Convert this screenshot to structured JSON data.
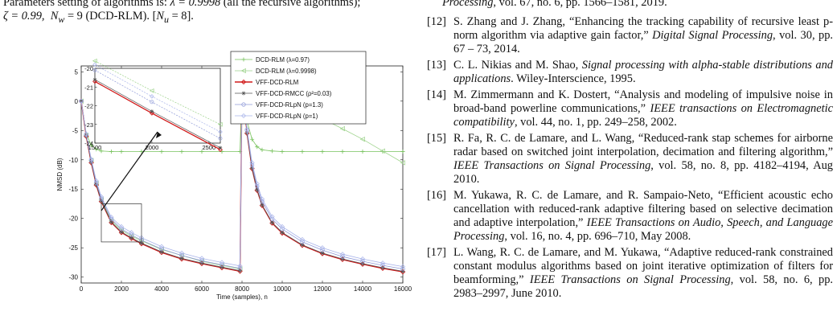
{
  "left_column": {
    "param_line1_prefix": "Parameters setting of algorithms is: ",
    "param_lambda": "λ = 0.9998",
    "param_line1_suffix": " (all the recursive algorithms);",
    "param_line2_zeta": "ζ = 0.99,",
    "param_line2_nw": "N",
    "param_line2_nw_sub": "w",
    "param_line2_nw_val": " = 9",
    "param_line2_alg": " (DCD-RLM). [",
    "param_line2_nu": "N",
    "param_line2_nu_sub": "u",
    "param_line2_nu_val": " = 8].",
    "param_line2_close": ""
  },
  "right_column": {
    "ref_tail": {
      "venue": "Processing",
      "rest": ", vol. 67, no. 6, pp. 1566–1581, 2019."
    },
    "references": [
      {
        "num": "[12]",
        "pre": "S. Zhang and J. Zhang, “Enhancing the tracking capability of recursive least p-norm algorithm via adaptive gain factor,” ",
        "venue": "Digital Signal Processing",
        "post": ", vol. 30, pp. 67 – 73, 2014."
      },
      {
        "num": "[13]",
        "pre": "C. L. Nikias and M. Shao, ",
        "venue": "Signal processing with alpha-stable distributions and applications",
        "post": ".  Wiley-Interscience, 1995."
      },
      {
        "num": "[14]",
        "pre": "M. Zimmermann and K. Dostert, “Analysis and modeling of impulsive noise in broad-band powerline communications,” ",
        "venue": "IEEE transactions on Electromagnetic compatibility",
        "post": ", vol. 44, no. 1, pp. 249–258, 2002."
      },
      {
        "num": "[15]",
        "pre": "R. Fa, R. C. de Lamare, and L. Wang, “Reduced-rank stap schemes for airborne radar based on switched joint interpolation, decimation and filtering algorithm,” ",
        "venue": "IEEE Transactions on Signal Processing",
        "post": ", vol. 58, no. 8, pp. 4182–4194, Aug 2010."
      },
      {
        "num": "[16]",
        "pre": "M. Yukawa, R. C. de Lamare, and R. Sampaio-Neto, “Efficient acoustic echo cancellation with reduced-rank adaptive filtering based on selective decimation and adaptive interpolation,” ",
        "venue": "IEEE Transactions on Audio, Speech, and Language Processing",
        "post": ", vol. 16, no. 4, pp. 696–710, May 2008."
      },
      {
        "num": "[17]",
        "pre": "L. Wang, R. C. de Lamare, and M. Yukawa, “Adaptive reduced-rank constrained constant modulus algorithms based on joint iterative optimization of filters for beamforming,” ",
        "venue": "IEEE Transactions on Signal Processing",
        "post": ", vol. 58, no. 6, pp. 2983–2997, June 2010."
      }
    ]
  },
  "chart_data": {
    "type": "line",
    "title": "",
    "xlabel": "Time (samples), n",
    "ylabel": "NMSD (dB)",
    "xlim": [
      0,
      16000
    ],
    "ylim": [
      -31,
      6
    ],
    "xticks": [
      0,
      2000,
      4000,
      6000,
      8000,
      10000,
      12000,
      14000,
      16000
    ],
    "yticks": [
      5,
      0,
      -5,
      -10,
      -15,
      -20,
      -25,
      -30
    ],
    "grid": false,
    "legend_position": "top-right",
    "series": [
      {
        "name": "DCD-RLM (λ=0.97)",
        "color": "#77c25d",
        "marker": "plus",
        "x": [
          0,
          250,
          500,
          750,
          1000,
          1500,
          2000,
          3000,
          4000,
          5000,
          6000,
          7000,
          7900,
          8000,
          8250,
          8500,
          8750,
          9000,
          9500,
          10000,
          11000,
          12000,
          13000,
          14000,
          15000,
          16000
        ],
        "y": [
          0,
          -5.6,
          -7.5,
          -8.2,
          -8.5,
          -8.6,
          -8.6,
          -8.6,
          -8.6,
          -8.6,
          -8.6,
          -8.6,
          -8.6,
          3,
          -3.5,
          -6.5,
          -7.8,
          -8.3,
          -8.5,
          -8.6,
          -8.6,
          -8.6,
          -8.6,
          -8.6,
          -8.6,
          -8.6
        ]
      },
      {
        "name": "DCD-RLM (λ=0.9998)",
        "color": "#9ed38c",
        "marker": "triangle-left",
        "x": [
          0,
          250,
          500,
          750,
          1000,
          1500,
          2000,
          2500,
          3000,
          4000,
          5000,
          6000,
          7000,
          7900,
          8000,
          8250,
          8500,
          9000,
          10000,
          11000,
          12000,
          13000,
          14000,
          15000,
          16000
        ],
        "y": [
          0,
          -5.8,
          -10.1,
          -14.0,
          -16.8,
          -20.4,
          -22.0,
          -23.0,
          -23.8,
          -25.3,
          -26.3,
          -27.3,
          -28.0,
          -28.6,
          3,
          2.8,
          2.5,
          1.8,
          0.2,
          -1.5,
          -3.0,
          -4.7,
          -6.5,
          -8.5,
          -10.5
        ]
      },
      {
        "name": "VFF-DCD-RLM",
        "color": "#d11a1a",
        "marker": "diamond",
        "x": [
          0,
          250,
          500,
          750,
          1000,
          1500,
          2000,
          2500,
          3000,
          4000,
          5000,
          6000,
          7000,
          7900,
          8000,
          8250,
          8500,
          8750,
          9000,
          9500,
          10000,
          11000,
          12000,
          13000,
          14000,
          15000,
          16000
        ],
        "y": [
          0,
          -6.0,
          -10.5,
          -14.3,
          -17.1,
          -20.7,
          -22.4,
          -23.4,
          -24.3,
          -25.8,
          -26.9,
          -27.7,
          -28.4,
          -29.0,
          3,
          -5.5,
          -11.5,
          -15.2,
          -17.8,
          -20.8,
          -22.5,
          -24.6,
          -26.0,
          -27.0,
          -27.8,
          -28.5,
          -29.1
        ]
      },
      {
        "name": "VFF-DCD-RMCC (ρ²=0.03)",
        "color": "#555555",
        "marker": "star",
        "x": [
          0,
          250,
          500,
          750,
          1000,
          1500,
          2000,
          2500,
          3000,
          4000,
          5000,
          6000,
          7000,
          7900,
          8000,
          8250,
          8500,
          8750,
          9000,
          9500,
          10000,
          11000,
          12000,
          13000,
          14000,
          15000,
          16000
        ],
        "y": [
          0,
          -5.9,
          -10.4,
          -14.2,
          -17.0,
          -20.6,
          -22.3,
          -23.3,
          -24.2,
          -25.7,
          -26.8,
          -27.6,
          -28.3,
          -28.9,
          3,
          -5.4,
          -11.4,
          -15.1,
          -17.7,
          -20.7,
          -22.4,
          -24.5,
          -25.9,
          -26.9,
          -27.7,
          -28.4,
          -29.0
        ]
      },
      {
        "name": "VFF-DCD-RLpN (p=1.3)",
        "color": "#8f9ad8",
        "marker": "circle",
        "x": [
          0,
          250,
          500,
          750,
          1000,
          1500,
          2000,
          2500,
          3000,
          4000,
          5000,
          6000,
          7000,
          7900,
          8000,
          8250,
          8500,
          8750,
          9000,
          9500,
          10000,
          11000,
          12000,
          13000,
          14000,
          15000,
          16000
        ],
        "y": [
          0,
          -5.7,
          -10.1,
          -13.9,
          -16.6,
          -20.1,
          -21.8,
          -22.8,
          -23.7,
          -25.2,
          -26.3,
          -27.2,
          -27.9,
          -28.5,
          3,
          -5.0,
          -10.9,
          -14.5,
          -17.1,
          -20.1,
          -21.8,
          -24.0,
          -25.4,
          -26.5,
          -27.3,
          -28.0,
          -28.6
        ]
      },
      {
        "name": "VFF-DCD-RLpN (p=1)",
        "color": "#a9b4ea",
        "marker": "diamond-open",
        "x": [
          0,
          250,
          500,
          750,
          1000,
          1500,
          2000,
          2500,
          3000,
          4000,
          5000,
          6000,
          7000,
          7900,
          8000,
          8250,
          8500,
          8750,
          9000,
          9500,
          10000,
          11000,
          12000,
          13000,
          14000,
          15000,
          16000
        ],
        "y": [
          0,
          -5.6,
          -9.9,
          -13.6,
          -16.3,
          -19.8,
          -21.4,
          -22.4,
          -23.3,
          -24.8,
          -25.9,
          -26.8,
          -27.5,
          -28.1,
          3,
          -4.8,
          -10.5,
          -14.1,
          -16.7,
          -19.7,
          -21.4,
          -23.6,
          -25.0,
          -26.1,
          -26.9,
          -27.6,
          -28.2
        ]
      }
    ],
    "inset": {
      "xlim": [
        1500,
        2600
      ],
      "ylim": [
        -24,
        -20
      ],
      "xticks": [
        1500,
        2000,
        2500
      ],
      "yticks": [
        -20,
        -21,
        -22,
        -23,
        -24
      ],
      "zoom_box_x": [
        1000,
        3000
      ],
      "zoom_box_y": [
        -24,
        -17.5
      ],
      "series": [
        {
          "x": [
            1500,
            2000,
            2600
          ],
          "y": [
            -20.7,
            -22.4,
            -24.35
          ]
        },
        {
          "x": [
            1500,
            2000,
            2600
          ],
          "y": [
            -20.6,
            -22.3,
            -24.25
          ]
        },
        {
          "x": [
            1500,
            2000,
            2600
          ],
          "y": [
            -20.1,
            -21.8,
            -23.75
          ]
        },
        {
          "x": [
            1500,
            2000,
            2600
          ],
          "y": [
            -19.8,
            -21.5,
            -23.4
          ]
        },
        {
          "x": [
            1500,
            2000,
            2600
          ],
          "y": [
            -19.6,
            -21.2,
            -23.0
          ]
        }
      ]
    }
  }
}
